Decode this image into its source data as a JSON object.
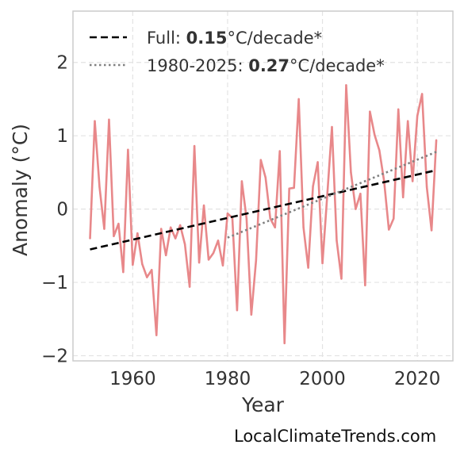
{
  "chart_data": {
    "type": "line",
    "xlabel": "Year",
    "ylabel": "Anomaly (°C)",
    "xlim": [
      1947.4,
      2027.5
    ],
    "ylim": [
      -2.07,
      2.7
    ],
    "x_ticks": [
      1960,
      1980,
      2000,
      2020
    ],
    "x_tick_labels": [
      "1960",
      "1980",
      "2000",
      "2020"
    ],
    "y_ticks": [
      -2,
      -1,
      0,
      1,
      2
    ],
    "y_tick_labels": [
      "−2",
      "−1",
      "0",
      "1",
      "2"
    ],
    "grid": true,
    "legend_position": "top-left",
    "series": [
      {
        "color": "#e8888a",
        "x": [
          1951,
          1952,
          1953,
          1954,
          1955,
          1956,
          1957,
          1958,
          1959,
          1960,
          1961,
          1962,
          1963,
          1964,
          1965,
          1966,
          1967,
          1968,
          1969,
          1970,
          1971,
          1972,
          1973,
          1974,
          1975,
          1976,
          1977,
          1978,
          1979,
          1980,
          1981,
          1982,
          1983,
          1984,
          1985,
          1986,
          1987,
          1988,
          1989,
          1990,
          1991,
          1992,
          1993,
          1994,
          1995,
          1996,
          1997,
          1998,
          1999,
          2000,
          2001,
          2002,
          2003,
          2004,
          2005,
          2006,
          2007,
          2008,
          2009,
          2010,
          2011,
          2012,
          2013,
          2014,
          2015,
          2016,
          2017,
          2018,
          2019,
          2020,
          2021,
          2022,
          2023,
          2024
        ],
        "y": [
          -0.4,
          1.2,
          0.3,
          -0.27,
          1.22,
          -0.37,
          -0.2,
          -0.86,
          0.81,
          -0.76,
          -0.33,
          -0.75,
          -0.93,
          -0.83,
          -1.72,
          -0.27,
          -0.63,
          -0.25,
          -0.4,
          -0.22,
          -0.48,
          -1.06,
          0.86,
          -0.73,
          0.05,
          -0.69,
          -0.6,
          -0.43,
          -0.77,
          -0.06,
          -0.12,
          -1.38,
          0.38,
          -0.13,
          -1.44,
          -0.7,
          0.67,
          0.43,
          -0.13,
          -0.25,
          0.79,
          -1.83,
          0.28,
          0.29,
          1.5,
          -0.25,
          -0.8,
          0.31,
          0.64,
          -0.74,
          0.18,
          1.12,
          -0.43,
          -0.95,
          1.69,
          0.5,
          0.0,
          0.21,
          -1.04,
          1.33,
          1.01,
          0.8,
          0.38,
          -0.28,
          -0.13,
          1.36,
          0.16,
          1.2,
          0.38,
          1.27,
          1.57,
          0.3,
          -0.29,
          0.94
        ]
      },
      {
        "name": "Full: 0.15°C/decade*",
        "color": "#000000",
        "style": "dashed",
        "x": [
          1951,
          2024
        ],
        "y": [
          -0.55,
          0.53
        ]
      },
      {
        "name": "1980-2025: 0.27°C/decade*",
        "color": "#808080",
        "style": "dotted",
        "x": [
          1980,
          2024
        ],
        "y": [
          -0.39,
          0.78
        ]
      }
    ],
    "legend": [
      {
        "prefix": "Full: ",
        "value": "0.15",
        "suffix": "°C/decade*",
        "style": "dashed",
        "color": "#000000"
      },
      {
        "prefix": "1980-2025: ",
        "value": "0.27",
        "suffix": "°C/decade*",
        "style": "dotted",
        "color": "#808080"
      }
    ]
  },
  "credit": "LocalClimateTrends.com"
}
